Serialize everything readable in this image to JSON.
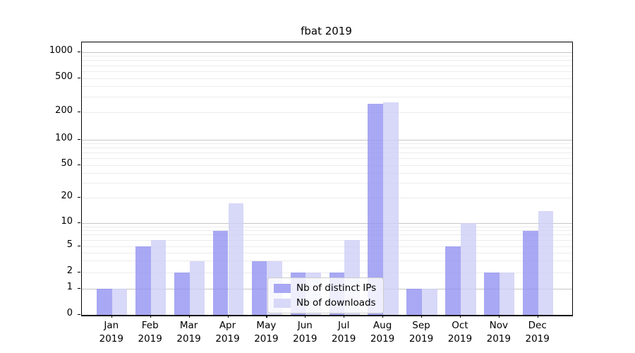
{
  "title": "fbat 2019",
  "chart_data": {
    "type": "bar",
    "title": "fbat 2019",
    "categories": [
      {
        "month": "Jan",
        "year": "2019"
      },
      {
        "month": "Feb",
        "year": "2019"
      },
      {
        "month": "Mar",
        "year": "2019"
      },
      {
        "month": "Apr",
        "year": "2019"
      },
      {
        "month": "May",
        "year": "2019"
      },
      {
        "month": "Jun",
        "year": "2019"
      },
      {
        "month": "Jul",
        "year": "2019"
      },
      {
        "month": "Aug",
        "year": "2019"
      },
      {
        "month": "Sep",
        "year": "2019"
      },
      {
        "month": "Oct",
        "year": "2019"
      },
      {
        "month": "Nov",
        "year": "2019"
      },
      {
        "month": "Dec",
        "year": "2019"
      }
    ],
    "series": [
      {
        "name": "Nb of distinct IPs",
        "color": "rgba(146,146,241,0.8)",
        "color_hex": "#a8a8f4",
        "values": [
          1,
          5,
          2,
          8,
          3,
          2,
          2,
          250,
          1,
          5,
          2,
          8
        ]
      },
      {
        "name": "Nb of downloads",
        "color": "rgba(206,206,246,0.8)",
        "color_hex": "#d8d8f8",
        "values": [
          1,
          6,
          3,
          17,
          3,
          2,
          6,
          260,
          1,
          10,
          2,
          14
        ]
      }
    ],
    "xlabel": "",
    "ylabel": "",
    "yscale": "symlog",
    "yticks": [
      0,
      1,
      2,
      5,
      10,
      20,
      50,
      100,
      200,
      500,
      1000
    ],
    "ylim": [
      0,
      1200
    ],
    "grid": "horizontal",
    "grid_major_color": "#c6c6c6",
    "grid_minor_color": "#ececec",
    "legend_position": "lower-center-inside"
  }
}
